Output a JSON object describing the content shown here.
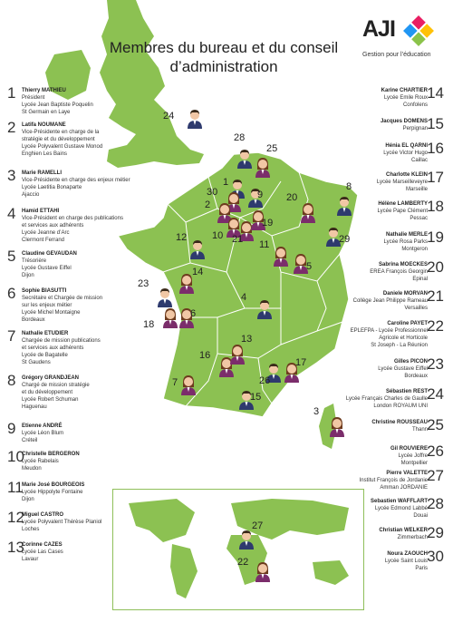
{
  "title": "Membres du bureau et du conseil d’administration",
  "logo": {
    "text": "AJI",
    "tagline": "Gestion pour l’éducation"
  },
  "colors": {
    "map": "#8cc152",
    "dept_border": "#ffffff",
    "sea": "#ffffff",
    "pin_suit": "#2e3a6e",
    "pin_female": "#7b2d6b"
  },
  "members": [
    {
      "num": "1",
      "name": "Thierry MATHIEU",
      "lines": [
        "Président",
        "Lycée Jean Baptiste Poquelin",
        "St Germain en Laye"
      ]
    },
    {
      "num": "2",
      "name": "Latifa NOUMANE",
      "lines": [
        "Vice-Présidente en charge de la",
        "stratégie et du développement",
        "Lycée Polyvalent Gustave Monod",
        "Enghien Les Bains"
      ]
    },
    {
      "num": "3",
      "name": "Marie RAMELLI",
      "lines": [
        "Vice-Présidente en charge des enjeux métier",
        "Lycée Laetitia Bonaparte",
        "Ajaccio"
      ]
    },
    {
      "num": "4",
      "name": "Hamid ETTAHI",
      "lines": [
        "Vice-Président en charge des publications",
        "et services aux adhérents",
        "Lycée Jeanne d’Arc",
        "Clermont Ferrand"
      ]
    },
    {
      "num": "5",
      "name": "Claudine GEVAUDAN",
      "lines": [
        "Trésorière",
        "Lycée Gustave Eiffel",
        "Dijon"
      ]
    },
    {
      "num": "6",
      "name": "Sophie BIASUTTI",
      "lines": [
        "Secrétaire et Chargée de mission",
        "sur les enjeux métier",
        "Lycée Michel Montaigne",
        "Bordeaux"
      ]
    },
    {
      "num": "7",
      "name": "Nathalie ETUDIER",
      "lines": [
        "Chargée de mission publications",
        "et services aux adhérents",
        "Lycée de Bagatelle",
        "St Gaudens"
      ]
    },
    {
      "num": "8",
      "name": "Grégory GRANDJEAN",
      "lines": [
        "Chargé de mission stratégie",
        "et du développement",
        "Lycée Robert Schuman",
        "Haguenau"
      ]
    },
    {
      "num": "9",
      "name": "Etienne ANDRÉ",
      "lines": [
        "Lycée Léon Blum",
        "Créteil"
      ]
    },
    {
      "num": "10",
      "name": "Christelle BERGERON",
      "lines": [
        "Lycée Rabelais",
        "Meudon"
      ]
    },
    {
      "num": "11",
      "name": "Marie José BOURGEOIS",
      "lines": [
        "Lycée Hippolyte Fontaine",
        "Dijon"
      ]
    },
    {
      "num": "12",
      "name": "Miguel CASTRO",
      "lines": [
        "Lycée Polyvalent Thérèse Planiol",
        "Loches"
      ]
    },
    {
      "num": "13",
      "name": "Corinne CAZES",
      "lines": [
        "Lycée Las Cases",
        "Lavaur"
      ]
    },
    {
      "num": "14",
      "name": "Karine CHARTIER",
      "lines": [
        "Lycée Emile Roux",
        "Confolens"
      ]
    },
    {
      "num": "15",
      "name": "Jacques DOMENS",
      "lines": [
        "Perpignan"
      ]
    },
    {
      "num": "16",
      "name": "Hénia EL QARNI",
      "lines": [
        "Lycée Victor Hugo",
        "Caillac"
      ]
    },
    {
      "num": "17",
      "name": "Charlotte KLEIN",
      "lines": [
        "Lycée Marseilleveyre",
        "Marseille"
      ]
    },
    {
      "num": "18",
      "name": "Hélène LAMBERTY",
      "lines": [
        "Lycée Pape Clément",
        "Pessac"
      ]
    },
    {
      "num": "19",
      "name": "Nathalie MERLE",
      "lines": [
        "Lycée Rosa Parks",
        "Montgeron"
      ]
    },
    {
      "num": "20",
      "name": "Sabrina MOECKES",
      "lines": [
        "EREA François Georgin",
        "Epinal"
      ]
    },
    {
      "num": "21",
      "name": "Daniele MORVAN",
      "lines": [
        "Collège Jean Philippe Rameau",
        "Versailles"
      ]
    },
    {
      "num": "22",
      "name": "Caroline PAYET",
      "lines": [
        "EPLEFPA - Lycée Professionnel",
        "Agricole et Horticole",
        "St Joseph - La Réunion"
      ]
    },
    {
      "num": "23",
      "name": "Gilles PICON",
      "lines": [
        "Lycée Gustave Eiffel",
        "Bordeaux"
      ]
    },
    {
      "num": "24",
      "name": "Sébastien REST",
      "lines": [
        "Lycée Français Charles de Gaulle",
        "London ROYAUM UNI"
      ]
    },
    {
      "num": "25",
      "name": "Christine ROUSSEAU",
      "lines": [
        "Thann"
      ]
    },
    {
      "num": "26",
      "name": "Gil ROUVIERE",
      "lines": [
        "Lycée Joffre",
        "Montpellier"
      ]
    },
    {
      "num": "27",
      "name": "Pierre VALETTE",
      "lines": [
        "Institut François de Jordanie",
        "Amman JORDANIE"
      ]
    },
    {
      "num": "28",
      "name": "Sebastien WAFFLART",
      "lines": [
        "Lycée Edmond Labbé",
        "Douai"
      ]
    },
    {
      "num": "29",
      "name": "Christian WELKER",
      "lines": [
        "Zimmerbach"
      ]
    },
    {
      "num": "30",
      "name": "Noura ZAOUCH",
      "lines": [
        "Lycée Saint Louis",
        "Paris"
      ]
    }
  ],
  "pins": [
    {
      "label": "24",
      "gender": "m"
    },
    {
      "label": "28",
      "gender": "m"
    },
    {
      "label": "25",
      "gender": "f"
    },
    {
      "label": "1",
      "gender": "m"
    },
    {
      "label": "30",
      "gender": "f"
    },
    {
      "label": "9",
      "gender": "m"
    },
    {
      "label": "2",
      "gender": "f"
    },
    {
      "label": "10",
      "gender": "f"
    },
    {
      "label": "21",
      "gender": "f"
    },
    {
      "label": "19",
      "gender": "f"
    },
    {
      "label": "20",
      "gender": "f"
    },
    {
      "label": "8",
      "gender": "m"
    },
    {
      "label": "29",
      "gender": "m"
    },
    {
      "label": "12",
      "gender": "m"
    },
    {
      "label": "11",
      "gender": "f"
    },
    {
      "label": "5",
      "gender": "f"
    },
    {
      "label": "14",
      "gender": "f"
    },
    {
      "label": "23",
      "gender": "m"
    },
    {
      "label": "18",
      "gender": "f"
    },
    {
      "label": "6",
      "gender": "f"
    },
    {
      "label": "4",
      "gender": "m"
    },
    {
      "label": "16",
      "gender": "f"
    },
    {
      "label": "13",
      "gender": "f"
    },
    {
      "label": "26",
      "gender": "m"
    },
    {
      "label": "17",
      "gender": "f"
    },
    {
      "label": "7",
      "gender": "f"
    },
    {
      "label": "15",
      "gender": "m"
    },
    {
      "label": "3",
      "gender": "f"
    },
    {
      "label": "27",
      "gender": "m"
    },
    {
      "label": "22",
      "gender": "f"
    }
  ]
}
